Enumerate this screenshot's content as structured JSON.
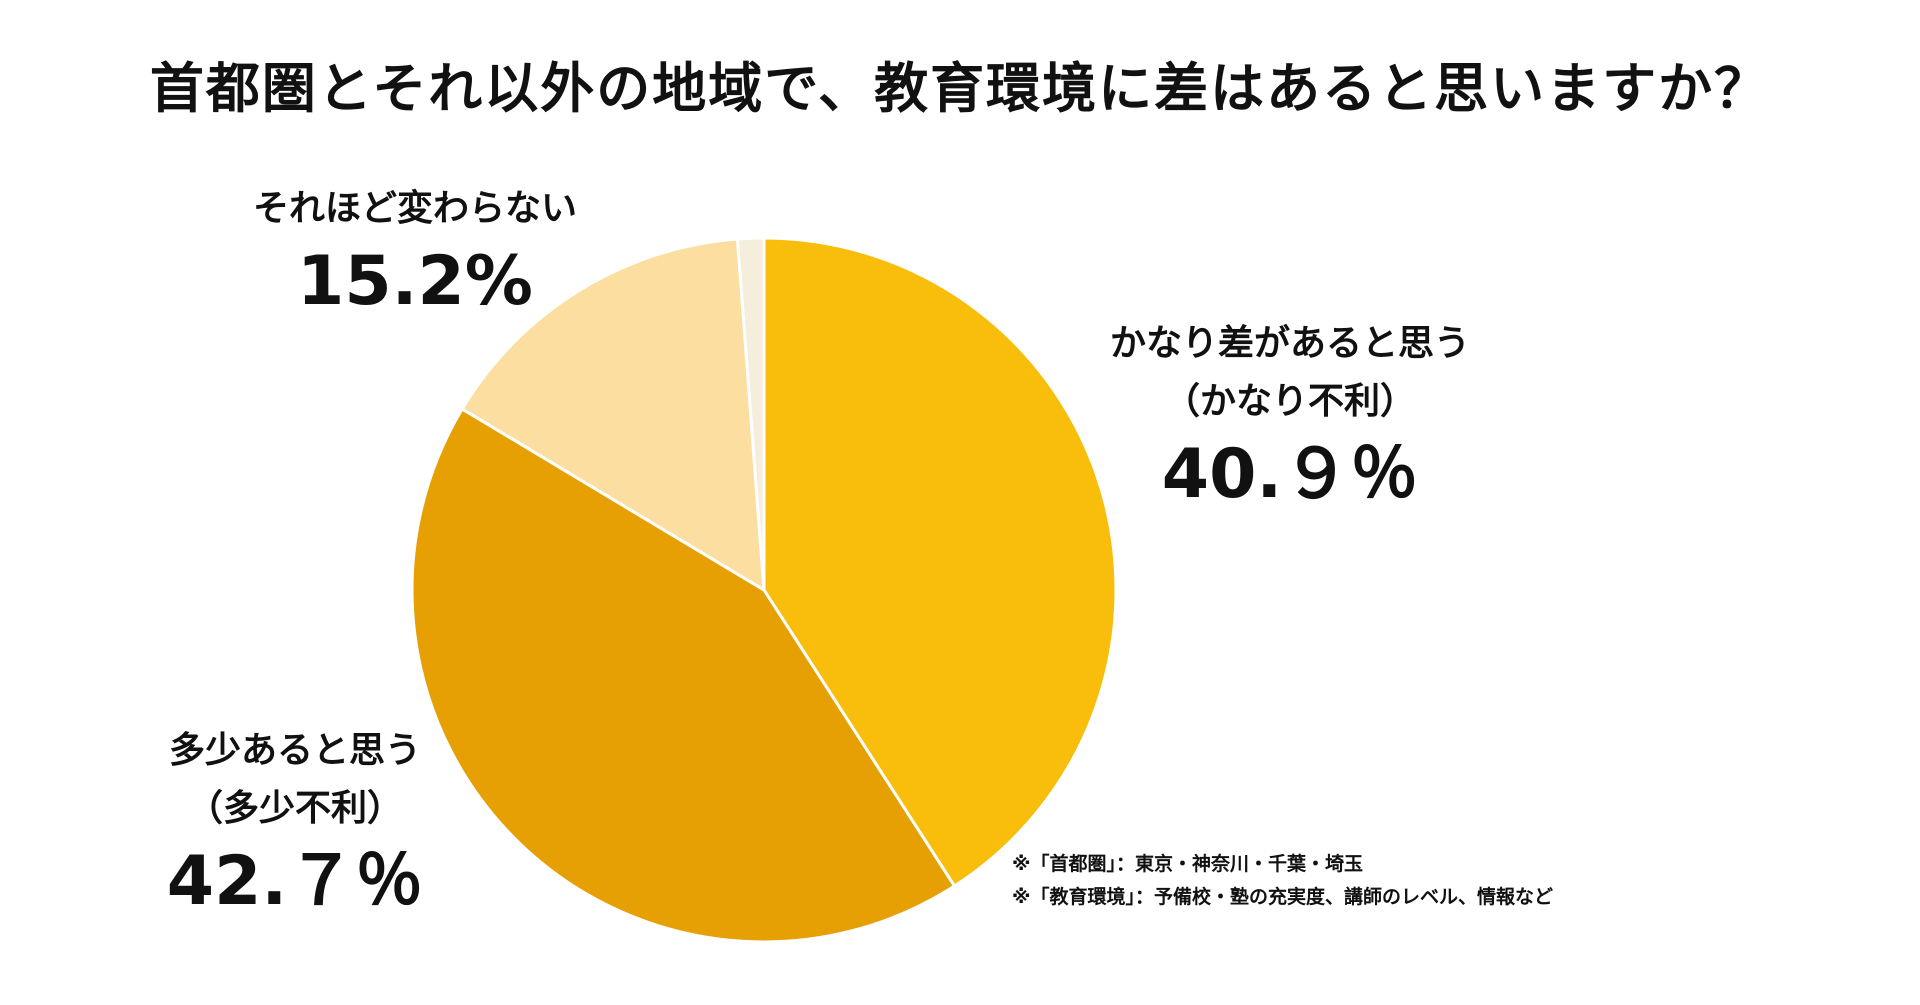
{
  "chart_data": {
    "type": "pie",
    "title": "首都圏とそれ以外の地域で、教育環境に差はあると思いますか？",
    "slices": [
      {
        "lines": [
          "かなり差があると思う",
          "（かなり不利）"
        ],
        "value": 40.9,
        "value_label": "40.９％",
        "color": "#F9BE0C"
      },
      {
        "lines": [
          "多少あると思う",
          "（多少不利）"
        ],
        "value": 42.7,
        "value_label": "42.７％",
        "color": "#E6A003"
      },
      {
        "lines": [
          "それほど変わらない"
        ],
        "value": 15.2,
        "value_label": "15.2%",
        "color": "#FCDEA0"
      },
      {
        "lines": [],
        "value": 1.2,
        "value_label": "",
        "color": "#F5EEDC"
      }
    ],
    "start_angle": "12 o'clock",
    "direction": "clockwise",
    "legend": "none"
  },
  "notes": [
    "※「首都圏」：東京・神奈川・千葉・埼玉",
    "※「教育環境」：予備校・塾の充実度、講師のレベル、情報など"
  ]
}
